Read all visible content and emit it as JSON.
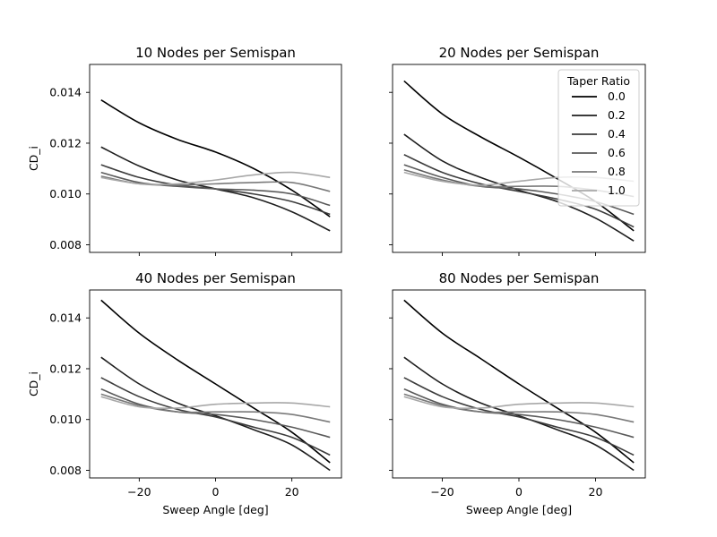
{
  "figure": {
    "layout": "2x2 grid, shared x and shared y axes",
    "legend_title": "Taper Ratio",
    "legend_placement": "top-right of top-right subplot"
  },
  "chart_data": [
    {
      "type": "line",
      "title": "10 Nodes per Semispan",
      "xlabel": "",
      "ylabel": "CD_i",
      "xlim": [
        -33,
        33
      ],
      "ylim": [
        0.0077,
        0.0151
      ],
      "xticks": [
        -20,
        0,
        20
      ],
      "yticks": [
        0.008,
        0.01,
        0.012,
        0.014
      ],
      "grid": false,
      "x": [
        -30,
        -20,
        -10,
        0,
        10,
        20,
        30
      ],
      "series": [
        {
          "name": "0.0",
          "color": "#000000",
          "values": [
            0.0137,
            0.0128,
            0.01215,
            0.01165,
            0.011,
            0.01015,
            0.0091
          ]
        },
        {
          "name": "0.2",
          "color": "#1e1e1e",
          "values": [
            0.01185,
            0.0111,
            0.01055,
            0.0102,
            0.00985,
            0.0093,
            0.00855
          ]
        },
        {
          "name": "0.4",
          "color": "#3c3c3c",
          "values": [
            0.01115,
            0.01065,
            0.01035,
            0.0102,
            0.01,
            0.0097,
            0.0092
          ]
        },
        {
          "name": "0.6",
          "color": "#5a5a5a",
          "values": [
            0.01085,
            0.01045,
            0.0103,
            0.0102,
            0.01015,
            0.01,
            0.00955
          ]
        },
        {
          "name": "0.8",
          "color": "#7a7a7a",
          "values": [
            0.0107,
            0.0104,
            0.01035,
            0.0104,
            0.01045,
            0.01045,
            0.0101
          ]
        },
        {
          "name": "1.0",
          "color": "#a8a8a8",
          "values": [
            0.01065,
            0.0104,
            0.0104,
            0.01055,
            0.01075,
            0.01085,
            0.01065
          ]
        }
      ]
    },
    {
      "type": "line",
      "title": "20 Nodes per Semispan",
      "xlabel": "",
      "ylabel": "",
      "xlim": [
        -33,
        33
      ],
      "ylim": [
        0.0077,
        0.0151
      ],
      "xticks": [
        -20,
        0,
        20
      ],
      "yticks": [
        0.008,
        0.01,
        0.012,
        0.014
      ],
      "grid": false,
      "x": [
        -30,
        -20,
        -10,
        0,
        10,
        20,
        30
      ],
      "series": [
        {
          "name": "0.0",
          "color": "#000000",
          "values": [
            0.01445,
            0.01315,
            0.01225,
            0.01145,
            0.0106,
            0.0097,
            0.00855
          ]
        },
        {
          "name": "0.2",
          "color": "#1e1e1e",
          "values": [
            0.01235,
            0.0113,
            0.01065,
            0.01015,
            0.0097,
            0.00905,
            0.00815
          ]
        },
        {
          "name": "0.4",
          "color": "#3c3c3c",
          "values": [
            0.01155,
            0.01085,
            0.0104,
            0.0101,
            0.0098,
            0.0094,
            0.0087
          ]
        },
        {
          "name": "0.6",
          "color": "#5a5a5a",
          "values": [
            0.01115,
            0.01065,
            0.0103,
            0.0102,
            0.01,
            0.0097,
            0.0092
          ]
        },
        {
          "name": "0.8",
          "color": "#7a7a7a",
          "values": [
            0.01095,
            0.01055,
            0.0103,
            0.0103,
            0.0103,
            0.01015,
            0.0099
          ]
        },
        {
          "name": "1.0",
          "color": "#a8a8a8",
          "values": [
            0.01085,
            0.0105,
            0.01035,
            0.0105,
            0.01065,
            0.01065,
            0.0105
          ]
        }
      ]
    },
    {
      "type": "line",
      "title": "40 Nodes per Semispan",
      "xlabel": "Sweep Angle [deg]",
      "ylabel": "CD_i",
      "xlim": [
        -33,
        33
      ],
      "ylim": [
        0.0077,
        0.0151
      ],
      "xticks": [
        -20,
        0,
        20
      ],
      "yticks": [
        0.008,
        0.01,
        0.012,
        0.014
      ],
      "grid": false,
      "x": [
        -30,
        -20,
        -10,
        0,
        10,
        20,
        30
      ],
      "series": [
        {
          "name": "0.0",
          "color": "#000000",
          "values": [
            0.0147,
            0.0134,
            0.01235,
            0.0114,
            0.01045,
            0.0095,
            0.0083
          ]
        },
        {
          "name": "0.2",
          "color": "#1e1e1e",
          "values": [
            0.01245,
            0.0114,
            0.01065,
            0.01015,
            0.0096,
            0.009,
            0.008
          ]
        },
        {
          "name": "0.4",
          "color": "#3c3c3c",
          "values": [
            0.01165,
            0.0109,
            0.0104,
            0.0101,
            0.0097,
            0.0093,
            0.0086
          ]
        },
        {
          "name": "0.6",
          "color": "#5a5a5a",
          "values": [
            0.0112,
            0.0106,
            0.0103,
            0.0102,
            0.01,
            0.0097,
            0.0093
          ]
        },
        {
          "name": "0.8",
          "color": "#7a7a7a",
          "values": [
            0.011,
            0.01055,
            0.0103,
            0.0103,
            0.0103,
            0.0102,
            0.0099
          ]
        },
        {
          "name": "1.0",
          "color": "#a8a8a8",
          "values": [
            0.0109,
            0.0105,
            0.01045,
            0.0106,
            0.01065,
            0.01065,
            0.0105
          ]
        }
      ]
    },
    {
      "type": "line",
      "title": "80 Nodes per Semispan",
      "xlabel": "Sweep Angle [deg]",
      "ylabel": "",
      "xlim": [
        -33,
        33
      ],
      "ylim": [
        0.0077,
        0.0151
      ],
      "xticks": [
        -20,
        0,
        20
      ],
      "yticks": [
        0.008,
        0.01,
        0.012,
        0.014
      ],
      "grid": false,
      "x": [
        -30,
        -20,
        -10,
        0,
        10,
        20,
        30
      ],
      "series": [
        {
          "name": "0.0",
          "color": "#000000",
          "values": [
            0.0147,
            0.0134,
            0.0124,
            0.0114,
            0.01045,
            0.0095,
            0.0083
          ]
        },
        {
          "name": "0.2",
          "color": "#1e1e1e",
          "values": [
            0.01245,
            0.0114,
            0.01065,
            0.01015,
            0.0096,
            0.009,
            0.008
          ]
        },
        {
          "name": "0.4",
          "color": "#3c3c3c",
          "values": [
            0.01165,
            0.0109,
            0.0104,
            0.0101,
            0.0097,
            0.0093,
            0.0086
          ]
        },
        {
          "name": "0.6",
          "color": "#5a5a5a",
          "values": [
            0.0112,
            0.0106,
            0.0103,
            0.0102,
            0.01,
            0.0097,
            0.0093
          ]
        },
        {
          "name": "0.8",
          "color": "#7a7a7a",
          "values": [
            0.011,
            0.01055,
            0.0103,
            0.0103,
            0.0103,
            0.0102,
            0.0099
          ]
        },
        {
          "name": "1.0",
          "color": "#a8a8a8",
          "values": [
            0.0109,
            0.0105,
            0.01045,
            0.0106,
            0.01065,
            0.01065,
            0.0105
          ]
        }
      ]
    }
  ]
}
